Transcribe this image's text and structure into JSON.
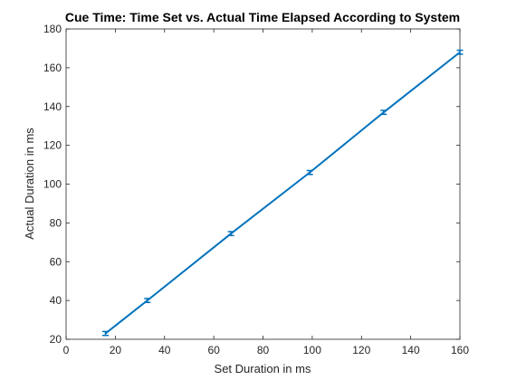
{
  "chart_data": {
    "type": "line",
    "title": "Cue Time: Time Set vs. Actual Time Elapsed According to System",
    "xlabel": "Set Duration in ms",
    "ylabel": "Actual Duration in ms",
    "xlim": [
      0,
      160
    ],
    "ylim": [
      20,
      180
    ],
    "xticks": [
      0,
      20,
      40,
      60,
      80,
      100,
      120,
      140,
      160
    ],
    "yticks": [
      20,
      40,
      60,
      80,
      100,
      120,
      140,
      160,
      180
    ],
    "grid": false,
    "series": [
      {
        "color": "#0072BD",
        "x": [
          16,
          33,
          67,
          99,
          129,
          160
        ],
        "y": [
          23,
          40,
          74.5,
          106,
          137,
          168
        ],
        "error": [
          1,
          1,
          1,
          1,
          1,
          1
        ]
      }
    ]
  }
}
